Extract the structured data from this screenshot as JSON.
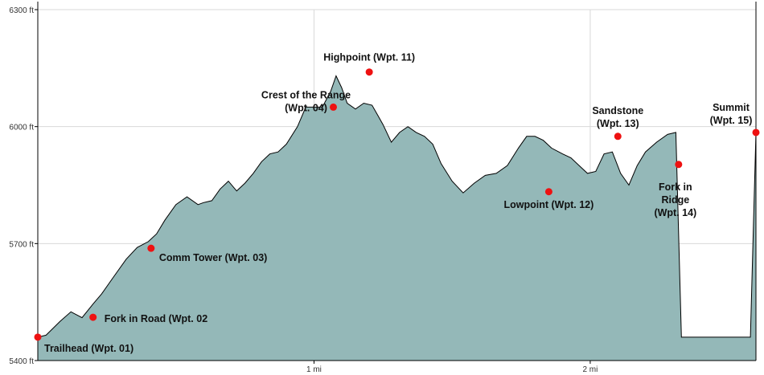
{
  "chart_data": {
    "type": "area",
    "title": "",
    "xlabel": "",
    "ylabel": "",
    "x_unit": "mi",
    "y_unit": "ft",
    "xlim": [
      0,
      2.6
    ],
    "ylim": [
      5400,
      6300
    ],
    "y_ticks": [
      {
        "value": 5400,
        "label": "5400 ft"
      },
      {
        "value": 5700,
        "label": "5700 ft"
      },
      {
        "value": 6000,
        "label": "6000 ft"
      },
      {
        "value": 6300,
        "label": "6300 ft"
      }
    ],
    "x_ticks": [
      {
        "value": 1,
        "label": "1 mi"
      },
      {
        "value": 2,
        "label": "2 mi"
      }
    ],
    "colors": {
      "fill": "#94b8b8",
      "line": "#000000",
      "marker": "#ee1111",
      "grid": "#d8d8d8"
    },
    "grid": true,
    "profile": {
      "x": [
        0.0,
        0.03,
        0.08,
        0.12,
        0.16,
        0.2,
        0.23,
        0.27,
        0.32,
        0.36,
        0.4,
        0.43,
        0.46,
        0.5,
        0.54,
        0.58,
        0.6,
        0.63,
        0.66,
        0.69,
        0.72,
        0.75,
        0.78,
        0.81,
        0.84,
        0.87,
        0.9,
        0.94,
        0.97,
        1.0,
        1.03,
        1.06,
        1.08,
        1.1,
        1.12,
        1.15,
        1.18,
        1.21,
        1.23,
        1.25,
        1.28,
        1.31,
        1.34,
        1.37,
        1.4,
        1.43,
        1.46,
        1.5,
        1.54,
        1.58,
        1.62,
        1.66,
        1.7,
        1.74,
        1.77,
        1.8,
        1.83,
        1.86,
        1.9,
        1.93,
        1.96,
        1.99,
        2.02,
        2.05,
        2.08,
        2.11,
        2.14,
        2.17,
        2.2,
        2.24,
        2.28,
        2.31,
        2.33,
        2.36,
        2.38,
        2.41,
        2.44,
        2.47,
        2.5,
        2.53,
        2.56,
        2.58
      ],
      "y": [
        5460,
        5465,
        5500,
        5525,
        5510,
        5545,
        5570,
        5610,
        5660,
        5690,
        5705,
        5725,
        5760,
        5800,
        5820,
        5800,
        5805,
        5810,
        5840,
        5860,
        5835,
        5855,
        5880,
        5910,
        5930,
        5935,
        5955,
        6000,
        6050,
        6050,
        6050,
        6090,
        6130,
        6100,
        6060,
        6045,
        6060,
        6055,
        6030,
        6005,
        5960,
        5985,
        6000,
        5985,
        5975,
        5955,
        5905,
        5860,
        5830,
        5855,
        5875,
        5880,
        5900,
        5945,
        5975,
        5975,
        5965,
        5945,
        5930,
        5920,
        5900,
        5880,
        5885,
        5930,
        5935,
        5880,
        5850,
        5900,
        5935,
        5960,
        5980,
        5985,
        5460,
        5460,
        5460,
        5460,
        5460,
        5460,
        5460,
        5460,
        5460,
        5460
      ]
    },
    "waypoints": [
      {
        "x": 0.0,
        "y": 5460,
        "label": [
          "Trailhead (Wpt. 01)"
        ]
      },
      {
        "x": 0.2,
        "y": 5511,
        "label": [
          "Fork in Road (Wpt. 02"
        ]
      },
      {
        "x": 0.41,
        "y": 5688,
        "label": [
          "Comm Tower (Wpt. 03)"
        ]
      },
      {
        "x": 1.07,
        "y": 6050,
        "label": [
          "Crest of the Range",
          "(Wpt. 04)"
        ]
      },
      {
        "x": 1.2,
        "y": 6140,
        "label": [
          "Highpoint (Wpt. 11)"
        ]
      },
      {
        "x": 1.85,
        "y": 5833,
        "label": [
          "Lowpoint (Wpt. 12)"
        ]
      },
      {
        "x": 2.1,
        "y": 5975,
        "label": [
          "Sandstone",
          "(Wpt. 13)"
        ]
      },
      {
        "x": 2.32,
        "y": 5903,
        "label": [
          "Fork in",
          "Ridge",
          "(Wpt. 14)"
        ]
      },
      {
        "x": 2.6,
        "y": 5985,
        "label": [
          "Summit",
          "(Wpt. 15)"
        ]
      }
    ]
  }
}
